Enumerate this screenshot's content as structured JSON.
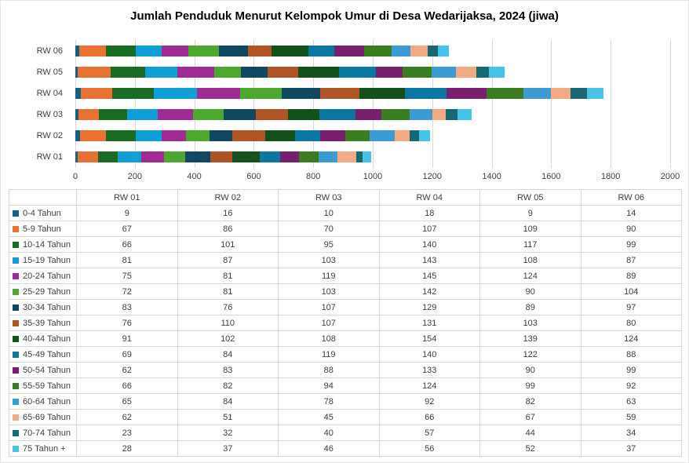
{
  "chart_data": {
    "type": "bar",
    "orientation": "horizontal",
    "stacked": true,
    "title": "Jumlah Penduduk Menurut Kelompok Umur di Desa Wedarijaksa, 2024 (jiwa)",
    "categories": [
      "RW 01",
      "RW 02",
      "RW 03",
      "RW 04",
      "RW 05",
      "RW 06"
    ],
    "display_order_top_to_bottom": [
      "RW 06",
      "RW 05",
      "RW 04",
      "RW 03",
      "RW 02",
      "RW 01"
    ],
    "xlim": [
      0,
      2000
    ],
    "x_ticks": [
      "0",
      "200",
      "400",
      "600",
      "800",
      "1000",
      "1200",
      "1400",
      "1600",
      "1800",
      "2000"
    ],
    "grid": true,
    "legend_position": "table-left-column",
    "table_header": [
      "",
      "RW 01",
      "RW 02",
      "RW 03",
      "RW 04",
      "RW 05",
      "RW 06"
    ],
    "series": [
      {
        "name": "0-4 Tahun",
        "color": "#156082",
        "values": [
          9,
          16,
          10,
          18,
          9,
          14
        ]
      },
      {
        "name": "5-9 Tahun",
        "color": "#E97132",
        "values": [
          67,
          86,
          70,
          107,
          109,
          90
        ]
      },
      {
        "name": "10-14 Tahun",
        "color": "#196B24",
        "values": [
          66,
          101,
          95,
          140,
          117,
          99
        ]
      },
      {
        "name": "15-19 Tahun",
        "color": "#0F9ED5",
        "values": [
          81,
          87,
          103,
          143,
          108,
          87
        ]
      },
      {
        "name": "20-24 Tahun",
        "color": "#A02B93",
        "values": [
          75,
          81,
          119,
          145,
          124,
          89
        ]
      },
      {
        "name": "25-29 Tahun",
        "color": "#4EA72E",
        "values": [
          72,
          81,
          103,
          142,
          90,
          104
        ]
      },
      {
        "name": "30-34 Tahun",
        "color": "#104862",
        "values": [
          83,
          76,
          107,
          129,
          89,
          97
        ]
      },
      {
        "name": "35-39 Tahun",
        "color": "#AF5525",
        "values": [
          76,
          110,
          107,
          131,
          103,
          80
        ]
      },
      {
        "name": "40-44 Tahun",
        "color": "#13501B",
        "values": [
          91,
          102,
          108,
          154,
          139,
          124
        ]
      },
      {
        "name": "45-49 Tahun",
        "color": "#0B77A0",
        "values": [
          69,
          84,
          119,
          140,
          122,
          88
        ]
      },
      {
        "name": "50-54 Tahun",
        "color": "#78206E",
        "values": [
          62,
          83,
          88,
          133,
          90,
          99
        ]
      },
      {
        "name": "55-59 Tahun",
        "color": "#3B7D23",
        "values": [
          66,
          82,
          94,
          124,
          99,
          92
        ]
      },
      {
        "name": "60-64 Tahun",
        "color": "#3C9BD3",
        "values": [
          65,
          84,
          78,
          92,
          82,
          63
        ]
      },
      {
        "name": "65-69 Tahun",
        "color": "#F2AA84",
        "values": [
          62,
          51,
          45,
          66,
          67,
          59
        ]
      },
      {
        "name": "70-74 Tahun",
        "color": "#176873",
        "values": [
          23,
          32,
          40,
          57,
          44,
          34
        ]
      },
      {
        "name": "75 Tahun +",
        "color": "#47C3E8",
        "values": [
          28,
          37,
          46,
          56,
          52,
          37
        ]
      }
    ],
    "colors": {
      "gridline": "#d9d9d9",
      "table_border": "#d9d9d9",
      "axis_text": "#404040",
      "title_text": "#000000"
    }
  }
}
